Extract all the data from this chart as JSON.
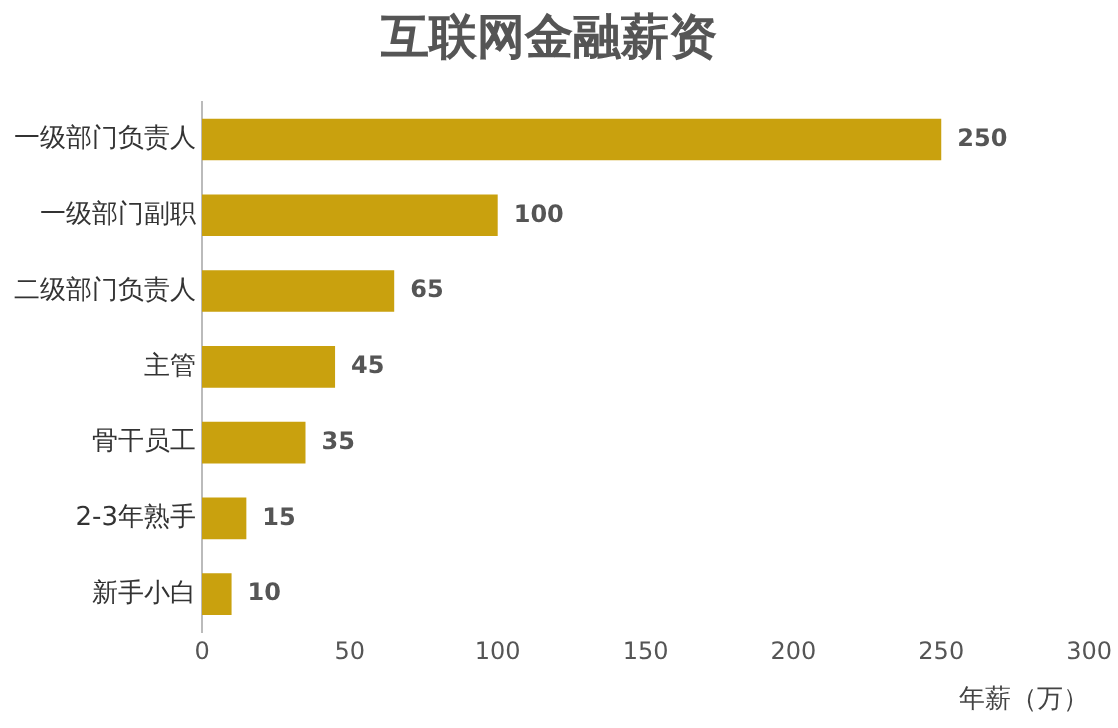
{
  "chart_data": {
    "type": "bar",
    "orientation": "horizontal",
    "title": "互联网金融薪资",
    "xlabel": "年薪（万）",
    "categories": [
      "一级部门负责人",
      "一级部门副职",
      "二级部门负责人",
      "主管",
      "骨干员工",
      "2-3年熟手",
      "新手小白"
    ],
    "values": [
      250,
      100,
      65,
      45,
      35,
      15,
      10
    ],
    "color": "#c9a10e",
    "xlim": [
      0,
      300
    ],
    "xticks": [
      0,
      50,
      100,
      150,
      200,
      250,
      300
    ],
    "grid": false,
    "legend": false,
    "data_labels": true
  }
}
